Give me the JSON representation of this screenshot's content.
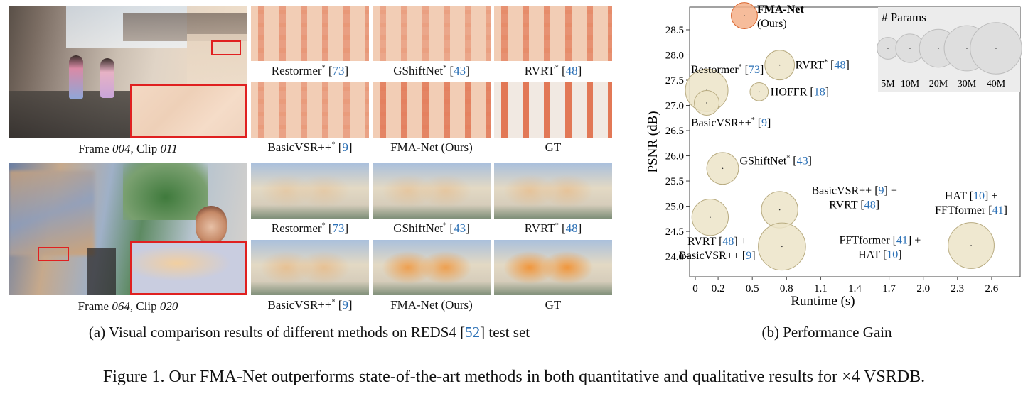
{
  "panel_a": {
    "row1": {
      "frame_caption_pre": "Frame ",
      "frame_num": "004",
      "frame_caption_mid": ", Clip ",
      "clip_num": "011",
      "labels": [
        {
          "name": "Restormer",
          "star": "*",
          "ref": "73"
        },
        {
          "name": "GShiftNet",
          "star": "*",
          "ref": "43"
        },
        {
          "name": "RVRT",
          "star": "*",
          "ref": "48"
        },
        {
          "name": "BasicVSR++",
          "star": "*",
          "ref": "9"
        },
        {
          "name": "FMA-Net (Ours)",
          "star": "",
          "ref": ""
        },
        {
          "name": "GT",
          "star": "",
          "ref": ""
        }
      ]
    },
    "row2": {
      "frame_caption_pre": "Frame ",
      "frame_num": "064",
      "frame_caption_mid": ", Clip ",
      "clip_num": "020",
      "labels": [
        {
          "name": "Restormer",
          "star": "*",
          "ref": "73"
        },
        {
          "name": "GShiftNet",
          "star": "*",
          "ref": "43"
        },
        {
          "name": "RVRT",
          "star": "*",
          "ref": "48"
        },
        {
          "name": "BasicVSR++",
          "star": "*",
          "ref": "9"
        },
        {
          "name": "FMA-Net (Ours)",
          "star": "",
          "ref": ""
        },
        {
          "name": "GT",
          "star": "",
          "ref": ""
        }
      ]
    },
    "subcaption_pre": "(a) Visual comparison results of different methods on REDS4 [",
    "subcaption_ref": "52",
    "subcaption_post": "] test set"
  },
  "panel_b": {
    "subcaption": "(b) Performance Gain"
  },
  "figure_caption": "Figure 1. Our FMA-Net outperforms state-of-the-art methods in both quantitative and qualitative results for ×4 VSRDB.",
  "colors": {
    "ours_fill": "#f4b08a",
    "ours_stroke": "#d9642c",
    "method_fill": "#ece4c8",
    "method_stroke": "#b8ab80",
    "legend_bg": "#ececec",
    "legend_bubble": "#dedede",
    "link_blue": "#2a6fb5",
    "mark_red": "#e02020"
  },
  "chart_data": {
    "type": "scatter",
    "title": "",
    "xlabel": "Runtime (s)",
    "ylabel": "PSNR (dB)",
    "xlim": [
      -0.05,
      2.85
    ],
    "ylim": [
      23.6,
      28.95
    ],
    "xticks": [
      0,
      0.2,
      0.5,
      0.8,
      1.1,
      1.4,
      1.7,
      2.0,
      2.3,
      2.6
    ],
    "xtick_labels": [
      "0",
      "0.2",
      "0.5",
      "0.8",
      "1.1",
      "1.4",
      "1.7",
      "2.0",
      "2.3",
      "2.6"
    ],
    "yticks": [
      24.0,
      24.5,
      25.0,
      25.5,
      26.0,
      26.5,
      27.0,
      27.5,
      28.0,
      28.5
    ],
    "ytick_labels": [
      "24.0",
      "24.5",
      "25.0",
      "25.5",
      "26.0",
      "26.5",
      "27.0",
      "27.5",
      "28.0",
      "28.5"
    ],
    "points": [
      {
        "name": "FMA-Net",
        "label_lines": [
          {
            "t": "FMA-Net",
            "bold": true
          },
          {
            "t": "(Ours)"
          }
        ],
        "x": 0.43,
        "y": 28.78,
        "params": 8,
        "ours": true
      },
      {
        "name": "Restormer",
        "label_lines": [
          {
            "t": "Restormer",
            "star": "*",
            "ref": "73"
          }
        ],
        "x": 0.1,
        "y": 27.3,
        "params": 26
      },
      {
        "name": "RVRT",
        "label_lines": [
          {
            "t": "RVRT",
            "star": "*",
            "ref": "48"
          }
        ],
        "x": 0.74,
        "y": 27.8,
        "params": 11
      },
      {
        "name": "HOFFR",
        "label_lines": [
          {
            "t": "HOFFR",
            "ref": "18"
          }
        ],
        "x": 0.56,
        "y": 27.27,
        "params": 3
      },
      {
        "name": "BasicVSR++",
        "label_lines": [
          {
            "t": "BasicVSR++",
            "star": "*",
            "ref": "9"
          }
        ],
        "x": 0.1,
        "y": 27.05,
        "params": 7
      },
      {
        "name": "GShiftNet",
        "label_lines": [
          {
            "t": "GShiftNet",
            "star": "*",
            "ref": "43"
          }
        ],
        "x": 0.24,
        "y": 25.75,
        "params": 13
      },
      {
        "name": "BasicVSR++ + RVRT",
        "label_lines": [
          {
            "t": "BasicVSR++",
            "ref": "9",
            "post": " +"
          },
          {
            "t": "RVRT",
            "ref": "48"
          }
        ],
        "x": 0.74,
        "y": 24.93,
        "params": 18
      },
      {
        "name": "RVRT + BasicVSR++",
        "label_lines": [
          {
            "t": "RVRT",
            "ref": "48",
            "post": " +"
          },
          {
            "t": "BasicVSR++",
            "ref": "9"
          }
        ],
        "x": 0.13,
        "y": 24.78,
        "params": 18
      },
      {
        "name": "FFTformer + HAT",
        "label_lines": [
          {
            "t": "FFTformer",
            "ref": "41",
            "post": " +"
          },
          {
            "t": "HAT",
            "ref": "10"
          }
        ],
        "x": 0.76,
        "y": 24.2,
        "params": 33
      },
      {
        "name": "HAT + FFTformer",
        "label_lines": [
          {
            "t": "HAT",
            "ref": "10",
            "post": " +"
          },
          {
            "t": "FFTformer",
            "ref": "41"
          }
        ],
        "x": 2.42,
        "y": 24.22,
        "params": 31
      }
    ],
    "legend": {
      "title": "# Params",
      "sizes": [
        {
          "label": "5M",
          "params": 5
        },
        {
          "label": "10M",
          "params": 10
        },
        {
          "label": "20M",
          "params": 20
        },
        {
          "label": "30M",
          "params": 30
        },
        {
          "label": "40M",
          "params": 40
        }
      ]
    }
  }
}
